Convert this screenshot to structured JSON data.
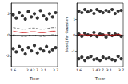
{
  "chart_data": [
    {
      "type": "scatter",
      "x_label": "Time",
      "x": [
        1.6,
        1.75,
        1.9,
        2.05,
        2.2,
        2.35,
        2.5,
        2.65,
        2.8,
        2.95,
        3.1,
        3.25,
        3.4,
        3.55,
        3.7
      ],
      "xlim": [
        1.5,
        3.8
      ],
      "xticks": [
        1.6,
        2.4,
        2.7,
        3.1,
        3.7
      ],
      "ylim": [
        -3,
        3
      ],
      "yticks": [
        -2,
        0,
        2
      ],
      "series": [
        {
          "type": "scatter",
          "color": "#000000",
          "marker": "circle",
          "values": [
            1.9,
            1.6,
            2.1,
            1.8,
            1.5,
            2.2,
            1.7,
            2.0,
            1.6,
            2.3,
            1.8,
            1.5,
            2.0,
            1.7,
            2.1
          ]
        },
        {
          "type": "scatter",
          "color": "#000000",
          "marker": "circle",
          "values": [
            -1.3,
            -1.6,
            -1.1,
            -1.4,
            -1.8,
            -1.2,
            -1.5,
            -1.0,
            -1.7,
            -1.3,
            -1.5,
            -1.1,
            -1.6,
            -1.4,
            -1.2
          ]
        },
        {
          "type": "line",
          "color": "#cc0000",
          "line_style": "solid",
          "values": [
            0.35,
            0.3,
            0.25,
            0.2,
            0.2,
            0.25,
            0.3,
            0.3,
            0.25,
            0.2,
            0.2,
            0.25,
            0.3,
            0.35,
            0.35
          ]
        },
        {
          "type": "line",
          "color": "#444444",
          "line_style": "dashed",
          "values": [
            0.7,
            0.65,
            0.6,
            0.55,
            0.55,
            0.6,
            0.65,
            0.65,
            0.6,
            0.55,
            0.55,
            0.6,
            0.65,
            0.7,
            0.7
          ]
        },
        {
          "type": "line",
          "color": "#444444",
          "line_style": "dashed",
          "values": [
            0.0,
            -0.05,
            -0.1,
            -0.15,
            -0.15,
            -0.1,
            -0.05,
            -0.05,
            -0.1,
            -0.15,
            -0.15,
            -0.1,
            -0.05,
            0.0,
            0.0
          ]
        }
      ]
    },
    {
      "type": "scatter",
      "x_label": "Time",
      "y_label": "Bias(t) for Gaussian",
      "x": [
        1.6,
        1.75,
        1.9,
        2.05,
        2.2,
        2.35,
        2.5,
        2.65,
        2.8,
        2.95,
        3.1,
        3.25,
        3.4,
        3.55,
        3.7
      ],
      "xlim": [
        1.5,
        3.8
      ],
      "xticks": [
        1.6,
        2.4,
        2.7,
        3.1,
        3.7
      ],
      "ylim": [
        -2,
        2
      ],
      "yticks": [
        -1,
        0,
        1
      ],
      "series": [
        {
          "type": "scatter",
          "color": "#000000",
          "marker": "circle",
          "values": [
            1.5,
            1.4,
            1.6,
            1.45,
            1.55,
            1.35,
            1.6,
            1.5,
            1.4,
            1.55,
            1.45,
            1.6,
            1.35,
            1.5,
            1.55
          ]
        },
        {
          "type": "scatter",
          "color": "#000000",
          "marker": "circle",
          "values": [
            0.05,
            -0.1,
            0.1,
            0.0,
            -0.05,
            0.15,
            -0.1,
            0.05,
            0.0,
            -0.15,
            0.1,
            -0.05,
            0.05,
            0.0,
            -0.1
          ]
        },
        {
          "type": "scatter",
          "color": "#000000",
          "marker": "circle",
          "values": [
            -1.5,
            -1.4,
            -1.6,
            -1.45,
            -1.35,
            -1.55,
            -1.5,
            -1.6,
            -1.4,
            -1.5,
            -1.45,
            -1.55,
            -1.6,
            -1.35,
            -1.5
          ]
        },
        {
          "type": "line",
          "color": "#cc0000",
          "line_style": "solid",
          "values": [
            0.0,
            0.02,
            0.0,
            -0.02,
            0.0,
            0.02,
            0.0,
            -0.02,
            0.0,
            0.02,
            0.0,
            -0.02,
            0.0,
            0.02,
            0.0
          ]
        }
      ]
    }
  ]
}
